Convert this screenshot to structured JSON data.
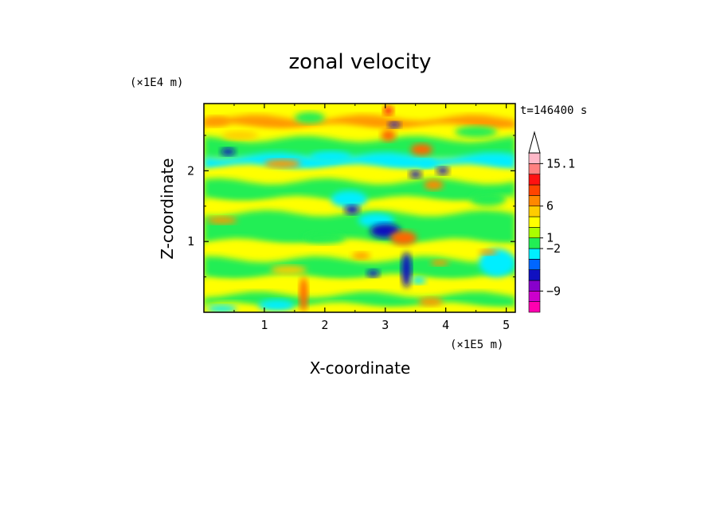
{
  "chart_data": {
    "type": "heatmap",
    "title": "zonal velocity",
    "xlabel": "X-coordinate",
    "ylabel": "Z-coordinate",
    "x_unit": "(×1E5 m)",
    "y_unit": "(×1E4 m)",
    "time_label": "t=146400 s",
    "xlim": [
      0,
      5.15
    ],
    "ylim": [
      0,
      2.95
    ],
    "x_ticks": [
      "1",
      "2",
      "3",
      "4",
      "5"
    ],
    "y_ticks": [
      "1",
      "2"
    ],
    "colorbar": {
      "labels": [
        "15.1",
        "6",
        "1",
        "−2",
        "−9"
      ],
      "colors": [
        "#ff00b0",
        "#cc00cc",
        "#8800cc",
        "#1010c0",
        "#0066ff",
        "#00eeff",
        "#22ee55",
        "#aaff00",
        "#ffff00",
        "#ffcc00",
        "#ff8800",
        "#ff4400",
        "#ff1111",
        "#ff8080",
        "#ffb8c8"
      ]
    },
    "bands": [
      {
        "y": 2.95,
        "c": "#ffff00"
      },
      {
        "y": 2.75,
        "c": "#ff9900"
      },
      {
        "y": 2.62,
        "c": "#ffff00"
      },
      {
        "y": 2.45,
        "c": "#22ee55"
      },
      {
        "y": 2.22,
        "c": "#00eeff"
      },
      {
        "y": 2.05,
        "c": "#ffff00"
      },
      {
        "y": 1.85,
        "c": "#22ee55"
      },
      {
        "y": 1.6,
        "c": "#ffff00"
      },
      {
        "y": 1.4,
        "c": "#22ee55"
      },
      {
        "y": 1.0,
        "c": "#ffff00"
      },
      {
        "y": 0.75,
        "c": "#22ee55"
      },
      {
        "y": 0.5,
        "c": "#ffff00"
      },
      {
        "y": 0.25,
        "c": "#22ee55"
      },
      {
        "y": 0.1,
        "c": "#ffff00"
      }
    ],
    "blobs": [
      {
        "x": 0.4,
        "y": 2.27,
        "rx": 0.12,
        "ry": 0.05,
        "c": "#1010c0"
      },
      {
        "x": 0.2,
        "y": 2.7,
        "rx": 0.22,
        "ry": 0.07,
        "c": "#ff9900"
      },
      {
        "x": 0.6,
        "y": 2.5,
        "rx": 0.3,
        "ry": 0.06,
        "c": "#ffcc00"
      },
      {
        "x": 1.3,
        "y": 2.1,
        "rx": 0.3,
        "ry": 0.06,
        "c": "#ff9900"
      },
      {
        "x": 1.75,
        "y": 2.75,
        "rx": 0.25,
        "ry": 0.08,
        "c": "#22ee55"
      },
      {
        "x": 0.3,
        "y": 1.3,
        "rx": 0.25,
        "ry": 0.05,
        "c": "#ff9900"
      },
      {
        "x": 2.1,
        "y": 2.2,
        "rx": 0.35,
        "ry": 0.08,
        "c": "#00eeff"
      },
      {
        "x": 2.4,
        "y": 1.6,
        "rx": 0.3,
        "ry": 0.12,
        "c": "#00eeff"
      },
      {
        "x": 2.45,
        "y": 1.45,
        "rx": 0.12,
        "ry": 0.06,
        "c": "#1010c0"
      },
      {
        "x": 2.85,
        "y": 1.3,
        "rx": 0.3,
        "ry": 0.1,
        "c": "#00eeff"
      },
      {
        "x": 3.0,
        "y": 1.15,
        "rx": 0.25,
        "ry": 0.1,
        "c": "#1010c0"
      },
      {
        "x": 3.3,
        "y": 1.05,
        "rx": 0.22,
        "ry": 0.1,
        "c": "#ff6600"
      },
      {
        "x": 3.05,
        "y": 2.5,
        "rx": 0.12,
        "ry": 0.08,
        "c": "#ff6600"
      },
      {
        "x": 3.6,
        "y": 2.3,
        "rx": 0.18,
        "ry": 0.08,
        "c": "#ff6600"
      },
      {
        "x": 3.7,
        "y": 2.1,
        "rx": 0.15,
        "ry": 0.06,
        "c": "#00eeff"
      },
      {
        "x": 3.8,
        "y": 1.8,
        "rx": 0.16,
        "ry": 0.07,
        "c": "#ff8800"
      },
      {
        "x": 3.5,
        "y": 1.95,
        "rx": 0.1,
        "ry": 0.05,
        "c": "#1010c0"
      },
      {
        "x": 3.95,
        "y": 2.0,
        "rx": 0.1,
        "ry": 0.05,
        "c": "#1010c0"
      },
      {
        "x": 3.15,
        "y": 2.65,
        "rx": 0.1,
        "ry": 0.04,
        "c": "#1010c0"
      },
      {
        "x": 4.5,
        "y": 2.55,
        "rx": 0.35,
        "ry": 0.08,
        "c": "#22ee55"
      },
      {
        "x": 4.7,
        "y": 1.6,
        "rx": 0.3,
        "ry": 0.1,
        "c": "#22ee55"
      },
      {
        "x": 4.85,
        "y": 0.7,
        "rx": 0.3,
        "ry": 0.2,
        "c": "#00eeff"
      },
      {
        "x": 4.7,
        "y": 0.85,
        "rx": 0.15,
        "ry": 0.04,
        "c": "#ff9900"
      },
      {
        "x": 3.35,
        "y": 0.6,
        "rx": 0.08,
        "ry": 0.25,
        "c": "#1010c0"
      },
      {
        "x": 3.55,
        "y": 0.45,
        "rx": 0.12,
        "ry": 0.05,
        "c": "#00eeff"
      },
      {
        "x": 2.8,
        "y": 0.55,
        "rx": 0.1,
        "ry": 0.05,
        "c": "#1010c0"
      },
      {
        "x": 2.6,
        "y": 0.8,
        "rx": 0.15,
        "ry": 0.05,
        "c": "#ff9900"
      },
      {
        "x": 1.65,
        "y": 0.25,
        "rx": 0.07,
        "ry": 0.25,
        "c": "#ff6600"
      },
      {
        "x": 1.2,
        "y": 0.1,
        "rx": 0.3,
        "ry": 0.08,
        "c": "#00eeff"
      },
      {
        "x": 0.3,
        "y": 0.05,
        "rx": 0.25,
        "ry": 0.05,
        "c": "#00eeff"
      },
      {
        "x": 3.9,
        "y": 0.7,
        "rx": 0.15,
        "ry": 0.04,
        "c": "#ff9900"
      },
      {
        "x": 2.0,
        "y": 1.05,
        "rx": 0.35,
        "ry": 0.08,
        "c": "#22ee55"
      },
      {
        "x": 1.4,
        "y": 0.6,
        "rx": 0.3,
        "ry": 0.06,
        "c": "#ffcc00"
      },
      {
        "x": 3.05,
        "y": 2.85,
        "rx": 0.08,
        "ry": 0.06,
        "c": "#ff1111"
      },
      {
        "x": 3.75,
        "y": 0.15,
        "rx": 0.2,
        "ry": 0.06,
        "c": "#ff9900"
      }
    ]
  }
}
